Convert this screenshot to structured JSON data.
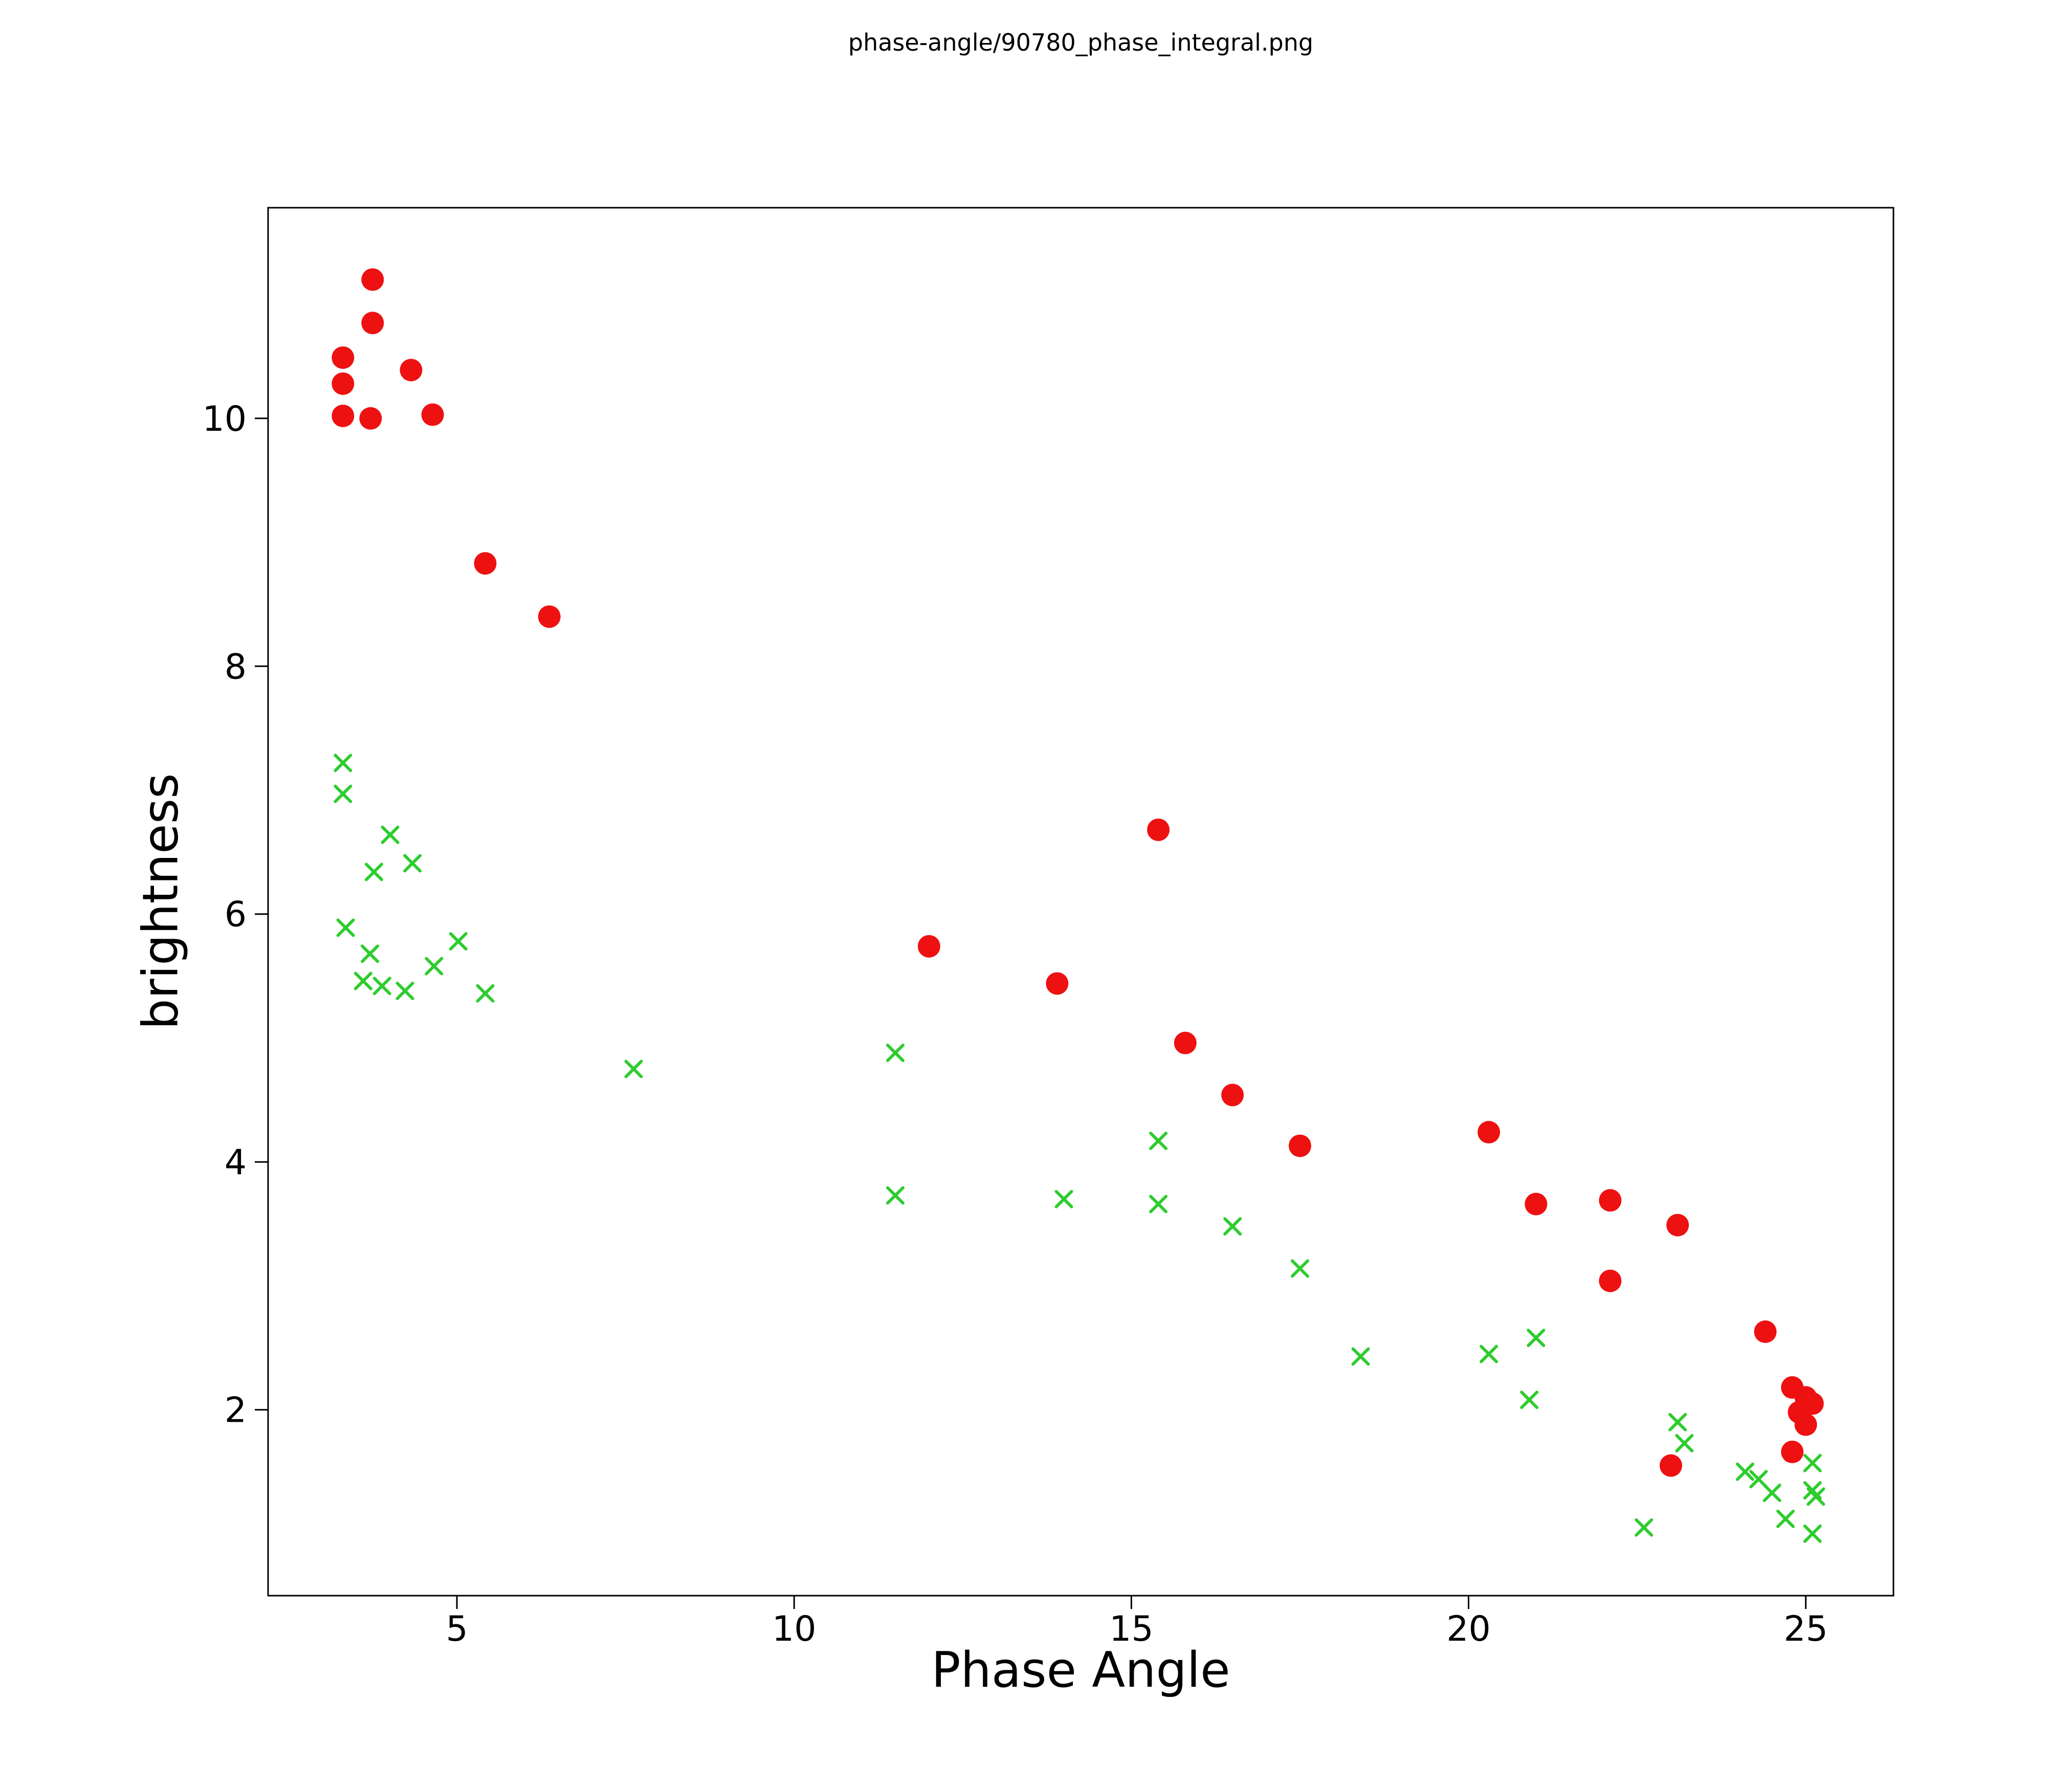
{
  "figure": {
    "title": "phase-angle/90780_phase_integral.png"
  },
  "chart_data": {
    "type": "scatter",
    "title": "phase-angle/90780_phase_integral.png",
    "xlabel": "Phase Angle",
    "ylabel": "brightness",
    "xlim": [
      2.2,
      26.3
    ],
    "ylim": [
      0.5,
      11.7
    ],
    "xticks": [
      5,
      10,
      15,
      20,
      25
    ],
    "yticks": [
      2,
      4,
      6,
      8,
      10
    ],
    "grid": false,
    "legend": "none",
    "series": [
      {
        "name": "red_circles",
        "marker": "circle",
        "color": "#ee1111",
        "points": [
          [
            3.75,
            11.12
          ],
          [
            3.75,
            10.77
          ],
          [
            3.31,
            10.49
          ],
          [
            3.31,
            10.28
          ],
          [
            3.31,
            10.02
          ],
          [
            3.72,
            10.0
          ],
          [
            4.32,
            10.39
          ],
          [
            4.64,
            10.03
          ],
          [
            5.42,
            8.83
          ],
          [
            6.37,
            8.4
          ],
          [
            12.0,
            5.74
          ],
          [
            13.9,
            5.44
          ],
          [
            15.4,
            6.68
          ],
          [
            15.8,
            4.96
          ],
          [
            16.5,
            4.54
          ],
          [
            17.5,
            4.13
          ],
          [
            20.3,
            4.24
          ],
          [
            21.0,
            3.66
          ],
          [
            22.1,
            3.69
          ],
          [
            22.1,
            3.04
          ],
          [
            23.1,
            3.49
          ],
          [
            23.0,
            1.55
          ],
          [
            24.4,
            2.63
          ],
          [
            24.8,
            2.18
          ],
          [
            24.9,
            1.98
          ],
          [
            25.0,
            2.1
          ],
          [
            25.1,
            2.05
          ],
          [
            25.0,
            1.88
          ],
          [
            24.8,
            1.66
          ]
        ]
      },
      {
        "name": "green_crosses",
        "marker": "x",
        "color": "#2ecc2e",
        "points": [
          [
            3.31,
            7.22
          ],
          [
            3.31,
            6.97
          ],
          [
            4.01,
            6.64
          ],
          [
            3.77,
            6.34
          ],
          [
            4.34,
            6.41
          ],
          [
            3.35,
            5.89
          ],
          [
            3.71,
            5.68
          ],
          [
            3.61,
            5.46
          ],
          [
            3.89,
            5.42
          ],
          [
            4.23,
            5.38
          ],
          [
            4.66,
            5.58
          ],
          [
            5.02,
            5.78
          ],
          [
            5.42,
            5.36
          ],
          [
            7.62,
            4.75
          ],
          [
            11.5,
            4.88
          ],
          [
            11.5,
            3.73
          ],
          [
            14.0,
            3.7
          ],
          [
            15.4,
            4.17
          ],
          [
            15.4,
            3.66
          ],
          [
            16.5,
            3.48
          ],
          [
            17.5,
            3.14
          ],
          [
            18.4,
            2.43
          ],
          [
            20.3,
            2.45
          ],
          [
            21.0,
            2.58
          ],
          [
            20.9,
            2.08
          ],
          [
            23.1,
            1.9
          ],
          [
            23.2,
            1.73
          ],
          [
            22.6,
            1.05
          ],
          [
            24.1,
            1.5
          ],
          [
            24.3,
            1.44
          ],
          [
            24.5,
            1.33
          ],
          [
            24.7,
            1.12
          ],
          [
            25.1,
            1.57
          ],
          [
            25.1,
            1.35
          ],
          [
            25.15,
            1.3
          ],
          [
            25.1,
            1.0
          ]
        ]
      }
    ]
  }
}
